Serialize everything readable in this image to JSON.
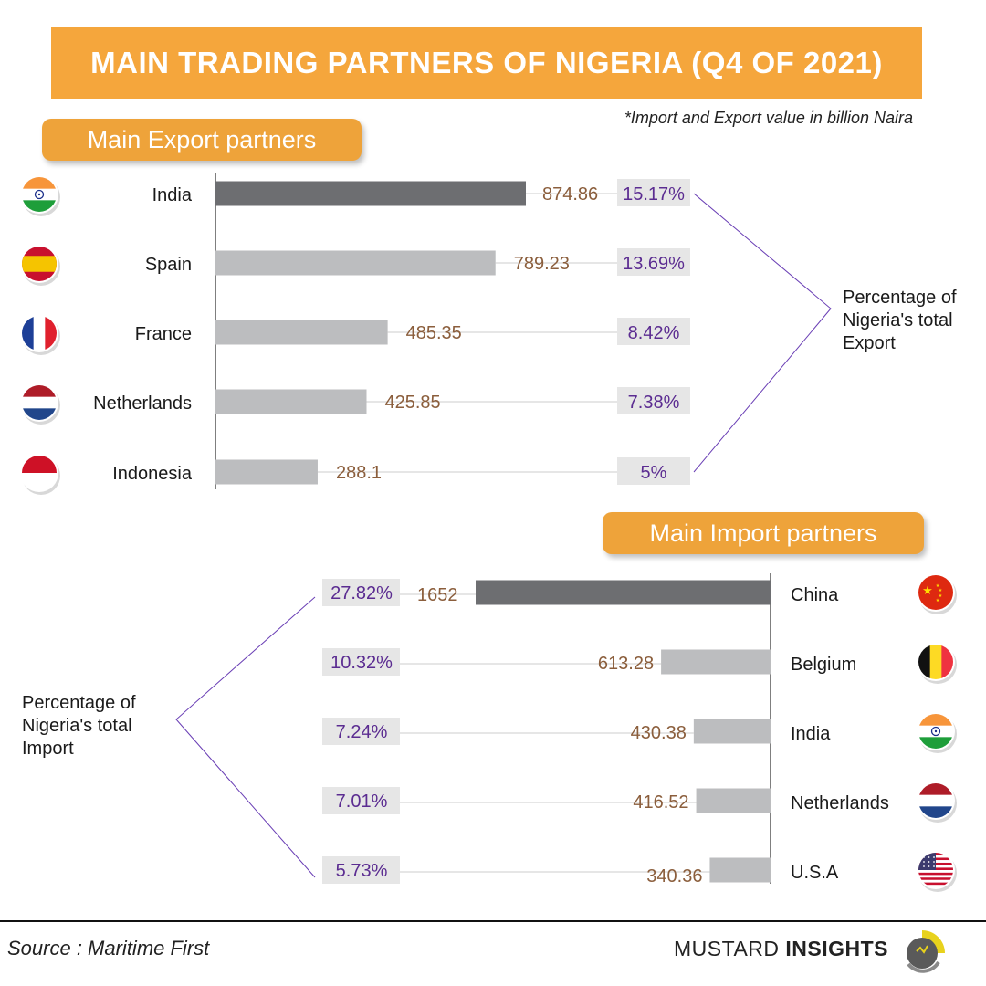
{
  "title": "MAIN TRADING PARTNERS OF NIGERIA (Q4 OF 2021)",
  "note": "*Import and Export value in billion Naira",
  "colors": {
    "accent": "#f5a63c",
    "bar_top": "#6d6e71",
    "bar": "#bcbdbf",
    "value_text": "#8b5e3c",
    "percent_text": "#5b2c91",
    "percent_bg": "#e6e6e6",
    "bracket": "#6a3fb5"
  },
  "chart_data": [
    {
      "type": "bar",
      "title": "Main Export partners",
      "categories": [
        "India",
        "Spain",
        "France",
        "Netherlands",
        "Indonesia"
      ],
      "values": [
        874.86,
        789.23,
        485.35,
        425.85,
        288.1
      ],
      "value_labels": [
        "874.86",
        "789.23",
        "485.35",
        "425.85",
        "288.1"
      ],
      "percentages": [
        "15.17%",
        "13.69%",
        "8.42%",
        "7.38%",
        "5%"
      ],
      "flags": [
        "india-flag-icon",
        "spain-flag-icon",
        "france-flag-icon",
        "netherlands-flag-icon",
        "indonesia-flag-icon"
      ],
      "bracket_label": [
        "Percentage of",
        "Nigeria's total",
        "Export"
      ],
      "unit": "billion Naira"
    },
    {
      "type": "bar",
      "title": "Main Import partners",
      "categories": [
        "China",
        "Belgium",
        "India",
        "Netherlands",
        "U.S.A"
      ],
      "values": [
        1652,
        613.28,
        430.38,
        416.52,
        340.36
      ],
      "value_labels": [
        "1652",
        "613.28",
        "430.38",
        "416.52",
        "340.36"
      ],
      "percentages": [
        "27.82%",
        "10.32%",
        "7.24%",
        "7.01%",
        "5.73%"
      ],
      "flags": [
        "china-flag-icon",
        "belgium-flag-icon",
        "india-flag-icon",
        "netherlands-flag-icon",
        "usa-flag-icon"
      ],
      "bracket_label": [
        "Percentage of",
        "Nigeria's total",
        "Import"
      ],
      "unit": "billion Naira"
    }
  ],
  "footer": {
    "source": "Source : Maritime First",
    "brand_light": "MUSTARD ",
    "brand_bold": "INSIGHTS"
  }
}
